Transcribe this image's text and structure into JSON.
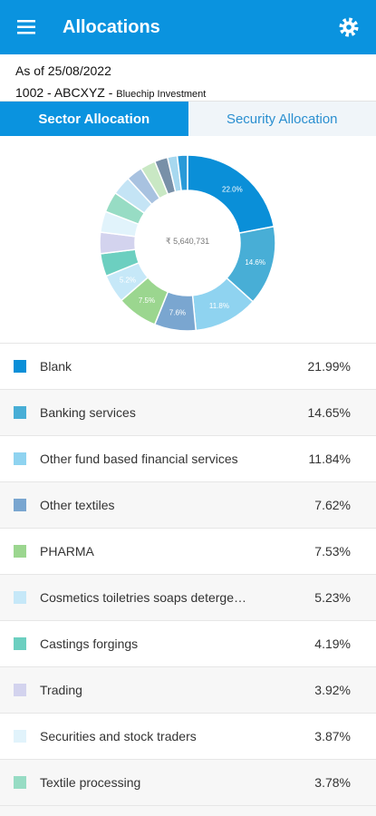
{
  "header": {
    "title": "Allocations"
  },
  "info": {
    "as_of": "As of 25/08/2022",
    "account": "1002 - ABCXYZ - ",
    "scheme": "Bluechip Investment"
  },
  "tabs": [
    "Sector Allocation",
    "Security Allocation"
  ],
  "chart_data": {
    "type": "pie",
    "center_label": "₹ 5,640,731",
    "categories": [
      "Blank",
      "Banking services",
      "Other fund based financial services",
      "Other textiles",
      "PHARMA",
      "Cosmetics toiletries soaps deterge…",
      "Castings forgings",
      "Trading",
      "Securities and stock traders",
      "Textile processing",
      null,
      null,
      null,
      null,
      null,
      null
    ],
    "values": [
      21.99,
      14.65,
      11.84,
      7.62,
      7.53,
      5.23,
      4.19,
      3.92,
      3.87,
      3.78,
      3.5,
      3.0,
      2.8,
      2.4,
      1.8,
      1.88
    ],
    "value_labels": [
      "22.0%",
      "14.6%",
      "11.8%",
      "7.6%",
      "7.5%",
      "5.2%",
      null,
      null,
      null,
      null,
      null,
      null,
      null,
      null,
      null,
      null
    ],
    "colors": [
      "#0a8fd8",
      "#48aed6",
      "#8fd3f0",
      "#7aa6d0",
      "#9bd68f",
      "#c6e8f8",
      "#6ccfc0",
      "#d3d3ee",
      "#e1f3fb",
      "#97dcc4",
      "#c4e4f5",
      "#a8c2e0",
      "#c9e8c4",
      "#7890a8",
      "#a7d8ef",
      "#2a9ad8"
    ]
  },
  "legend_percentages": [
    "21.99%",
    "14.65%",
    "11.84%",
    "7.62%",
    "7.53%",
    "5.23%",
    "4.19%",
    "3.92%",
    "3.87%",
    "3.78%"
  ]
}
